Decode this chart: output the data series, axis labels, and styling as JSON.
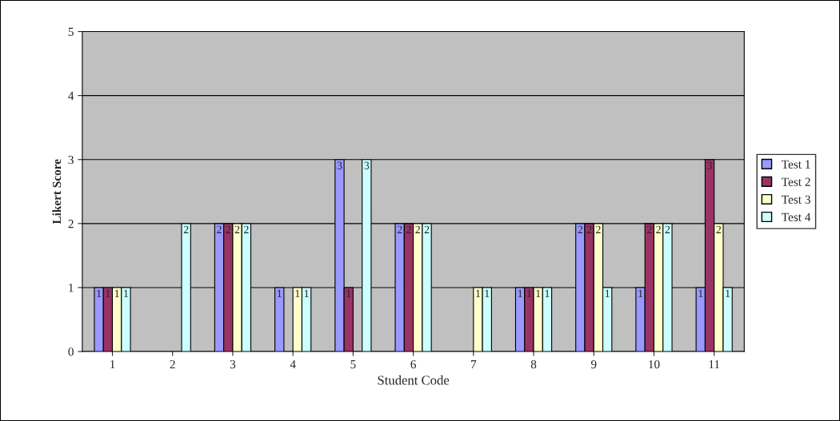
{
  "chart_data": {
    "type": "bar",
    "xlabel": "Student Code",
    "ylabel": "Likert Score",
    "categories": [
      "1",
      "2",
      "3",
      "4",
      "5",
      "6",
      "7",
      "8",
      "9",
      "10",
      "11"
    ],
    "series": [
      {
        "name": "Test 1",
        "color": "#9999ff",
        "values": [
          1,
          null,
          2,
          1,
          3,
          2,
          null,
          1,
          2,
          1,
          1
        ]
      },
      {
        "name": "Test 2",
        "color": "#993366",
        "values": [
          1,
          null,
          2,
          null,
          1,
          2,
          null,
          1,
          2,
          2,
          3
        ]
      },
      {
        "name": "Test 3",
        "color": "#ffffcc",
        "values": [
          1,
          null,
          2,
          1,
          null,
          2,
          1,
          1,
          2,
          2,
          2
        ]
      },
      {
        "name": "Test 4",
        "color": "#ccffff",
        "values": [
          1,
          2,
          2,
          1,
          3,
          2,
          1,
          1,
          1,
          2,
          1
        ]
      }
    ],
    "ylim": [
      0,
      5
    ],
    "yticks": [
      0,
      1,
      2,
      3,
      4,
      5
    ],
    "grid": "y",
    "legend": "right",
    "data_labels": true
  }
}
